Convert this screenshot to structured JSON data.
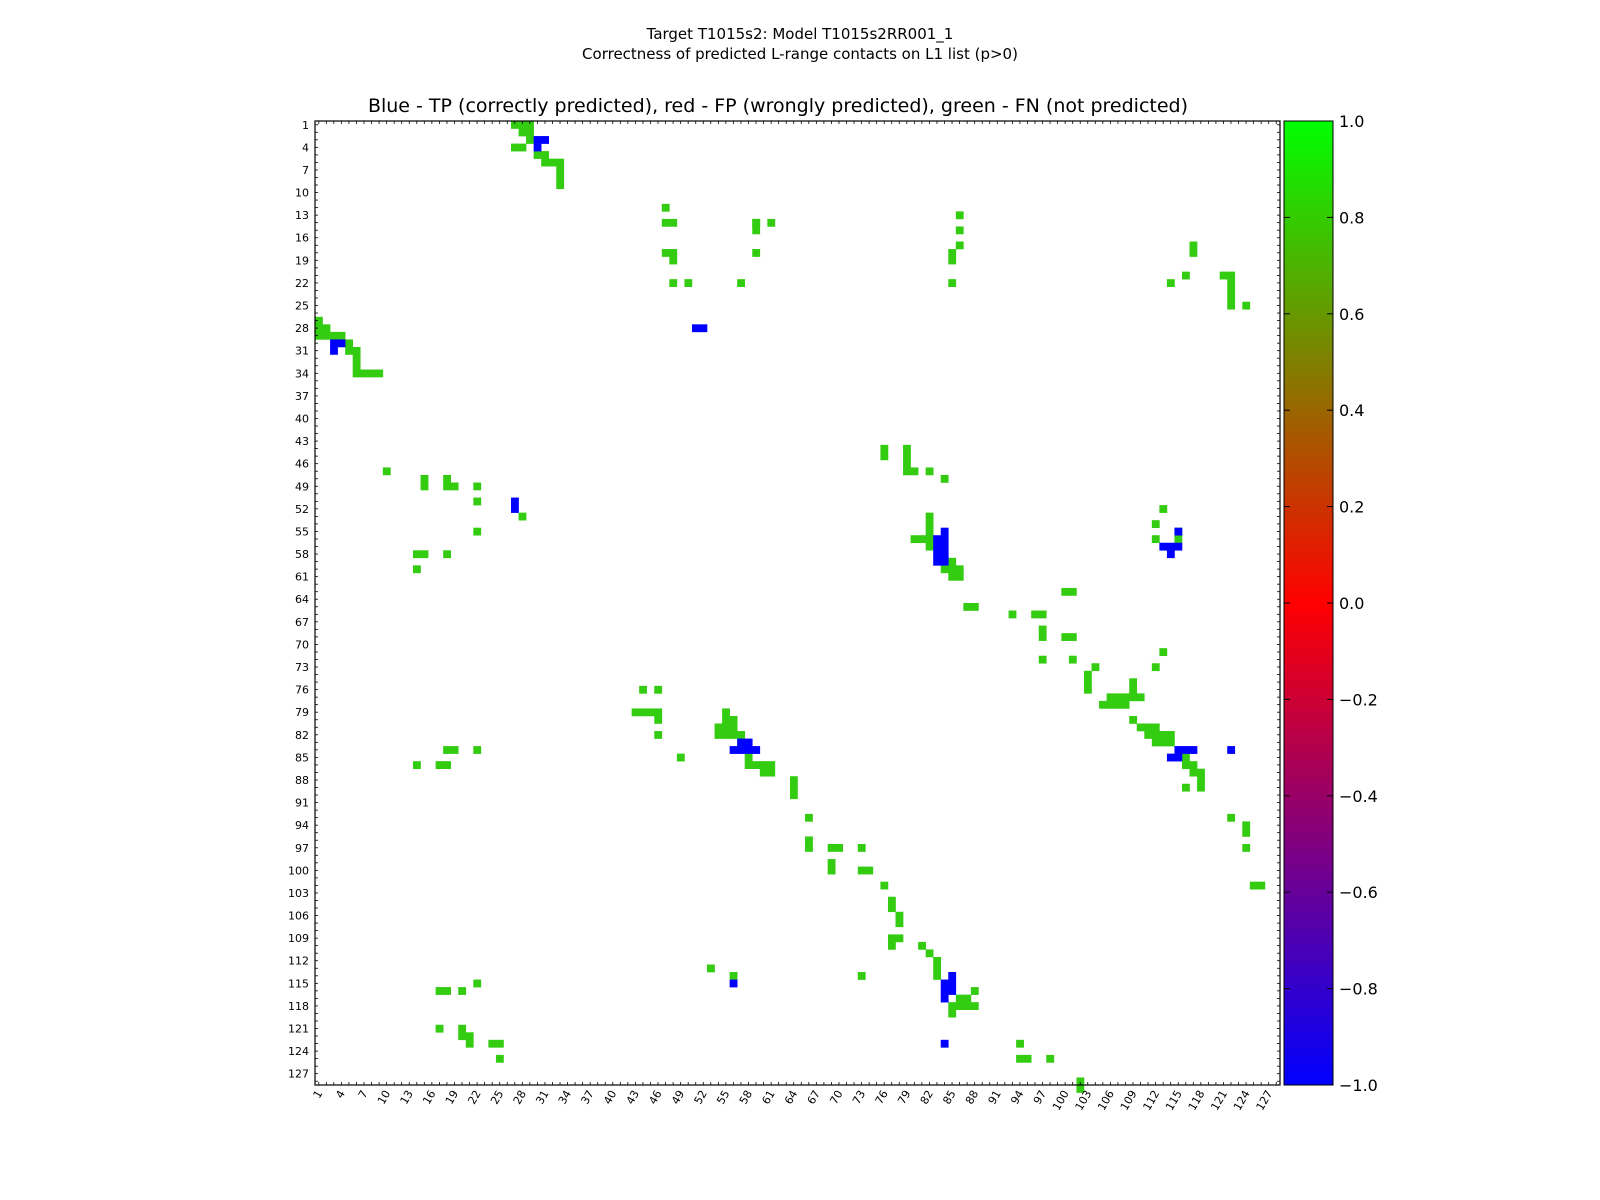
{
  "suptitle_line1": "Target T1015s2: Model T1015s2RR001_1",
  "suptitle_line2": "Correctness of predicted L-range contacts on L1 list (p>0)",
  "chart_data": {
    "type": "heatmap",
    "title": "Blue - TP (correctly predicted), red - FP (wrongly predicted), green - FN (not predicted)",
    "xlabel": "",
    "ylabel": "",
    "xlim": [
      1,
      128
    ],
    "ylim": [
      1,
      128
    ],
    "ticks": [
      "1",
      "4",
      "7",
      "10",
      "13",
      "16",
      "19",
      "22",
      "25",
      "28",
      "31",
      "34",
      "37",
      "40",
      "43",
      "46",
      "49",
      "52",
      "55",
      "58",
      "61",
      "64",
      "67",
      "70",
      "73",
      "76",
      "79",
      "82",
      "85",
      "88",
      "91",
      "94",
      "97",
      "100",
      "103",
      "106",
      "109",
      "112",
      "115",
      "118",
      "121",
      "124",
      "127"
    ],
    "legend": {
      "TP": "Blue - TP (correctly predicted)",
      "FP": "red - FP (wrongly predicted)",
      "FN": "green - FN (not predicted)"
    },
    "colorbar": {
      "min": -1.0,
      "max": 1.0,
      "ticks": [
        "1.0",
        "0.8",
        "0.6",
        "0.4",
        "0.2",
        "0.0",
        "−0.2",
        "−0.4",
        "−0.6",
        "−0.8",
        "−1.0"
      ],
      "stops": [
        "#0000ff",
        "#ff0000",
        "#00ff00"
      ]
    },
    "colors": {
      "TP": "#0000ff",
      "FP": "#ff0000",
      "FN": "#33cc11"
    },
    "cells": {
      "FN": [
        [
          1,
          27
        ],
        [
          1,
          28
        ],
        [
          1,
          29
        ],
        [
          2,
          28
        ],
        [
          2,
          29
        ],
        [
          3,
          29
        ],
        [
          4,
          27
        ],
        [
          4,
          28
        ],
        [
          5,
          30
        ],
        [
          5,
          31
        ],
        [
          6,
          31
        ],
        [
          6,
          32
        ],
        [
          6,
          33
        ],
        [
          7,
          33
        ],
        [
          8,
          33
        ],
        [
          9,
          33
        ],
        [
          12,
          47
        ],
        [
          14,
          47
        ],
        [
          14,
          48
        ],
        [
          14,
          59
        ],
        [
          14,
          61
        ],
        [
          13,
          86
        ],
        [
          14,
          59
        ],
        [
          15,
          59
        ],
        [
          15,
          86
        ],
        [
          17,
          86
        ],
        [
          18,
          47
        ],
        [
          18,
          48
        ],
        [
          18,
          59
        ],
        [
          18,
          85
        ],
        [
          19,
          48
        ],
        [
          19,
          85
        ],
        [
          22,
          48
        ],
        [
          22,
          50
        ],
        [
          22,
          57
        ],
        [
          22,
          85
        ],
        [
          17,
          117
        ],
        [
          18,
          117
        ],
        [
          21,
          116
        ],
        [
          21,
          121
        ],
        [
          21,
          122
        ],
        [
          22,
          114
        ],
        [
          22,
          122
        ],
        [
          23,
          122
        ],
        [
          24,
          122
        ],
        [
          25,
          122
        ],
        [
          25,
          124
        ],
        [
          27,
          1
        ],
        [
          28,
          1
        ],
        [
          28,
          2
        ],
        [
          29,
          1
        ],
        [
          29,
          2
        ],
        [
          29,
          3
        ],
        [
          29,
          4
        ],
        [
          30,
          4
        ],
        [
          30,
          5
        ],
        [
          31,
          5
        ],
        [
          31,
          6
        ],
        [
          32,
          6
        ],
        [
          33,
          6
        ],
        [
          34,
          6
        ],
        [
          34,
          7
        ],
        [
          34,
          8
        ],
        [
          34,
          9
        ],
        [
          44,
          76
        ],
        [
          45,
          76
        ],
        [
          44,
          79
        ],
        [
          45,
          79
        ],
        [
          46,
          79
        ],
        [
          47,
          79
        ],
        [
          47,
          80
        ],
        [
          47,
          82
        ],
        [
          48,
          84
        ],
        [
          47,
          10
        ],
        [
          48,
          15
        ],
        [
          49,
          15
        ],
        [
          48,
          18
        ],
        [
          49,
          18
        ],
        [
          49,
          19
        ],
        [
          49,
          22
        ],
        [
          51,
          22
        ],
        [
          55,
          22
        ],
        [
          58,
          14
        ],
        [
          58,
          15
        ],
        [
          58,
          18
        ],
        [
          60,
          14
        ],
        [
          53,
          28
        ],
        [
          53,
          82
        ],
        [
          54,
          82
        ],
        [
          55,
          82
        ],
        [
          56,
          80
        ],
        [
          56,
          81
        ],
        [
          56,
          82
        ],
        [
          57,
          82
        ],
        [
          57,
          83
        ],
        [
          58,
          84
        ],
        [
          59,
          85
        ],
        [
          60,
          85
        ],
        [
          61,
          85
        ],
        [
          61,
          86
        ],
        [
          59,
          84
        ],
        [
          60,
          84
        ],
        [
          60,
          86
        ],
        [
          54,
          112
        ],
        [
          56,
          112
        ],
        [
          65,
          87
        ],
        [
          65,
          88
        ],
        [
          66,
          93
        ],
        [
          66,
          96
        ],
        [
          66,
          97
        ],
        [
          68,
          97
        ],
        [
          69,
          97
        ],
        [
          69,
          100
        ],
        [
          69,
          101
        ],
        [
          72,
          97
        ],
        [
          72,
          101
        ],
        [
          73,
          112
        ],
        [
          74,
          103
        ],
        [
          76,
          44
        ],
        [
          76,
          46
        ],
        [
          77,
          106
        ],
        [
          77,
          107
        ],
        [
          77,
          110
        ],
        [
          78,
          105
        ],
        [
          78,
          106
        ],
        [
          78,
          107
        ],
        [
          78,
          108
        ],
        [
          79,
          43
        ],
        [
          79,
          44
        ],
        [
          79,
          45
        ],
        [
          79,
          46
        ],
        [
          80,
          46
        ],
        [
          79,
          55
        ],
        [
          80,
          55
        ],
        [
          80,
          56
        ],
        [
          81,
          54
        ],
        [
          81,
          55
        ],
        [
          81,
          56
        ],
        [
          82,
          54
        ],
        [
          82,
          55
        ],
        [
          82,
          56
        ],
        [
          82,
          57
        ],
        [
          83,
          57
        ],
        [
          84,
          18
        ],
        [
          84,
          19
        ],
        [
          84,
          22
        ],
        [
          85,
          49
        ],
        [
          86,
          14
        ],
        [
          86,
          17
        ],
        [
          86,
          18
        ],
        [
          85,
          58
        ],
        [
          86,
          58
        ],
        [
          86,
          59
        ],
        [
          86,
          60
        ],
        [
          86,
          61
        ],
        [
          87,
          60
        ],
        [
          87,
          61
        ],
        [
          88,
          64
        ],
        [
          89,
          64
        ],
        [
          90,
          64
        ],
        [
          82,
          46
        ],
        [
          80,
          109
        ],
        [
          81,
          110
        ],
        [
          81,
          111
        ],
        [
          81,
          112
        ],
        [
          82,
          111
        ],
        [
          82,
          112
        ],
        [
          82,
          113
        ],
        [
          82,
          114
        ],
        [
          83,
          112
        ],
        [
          83,
          113
        ],
        [
          83,
          114
        ],
        [
          85,
          116
        ],
        [
          86,
          116
        ],
        [
          86,
          117
        ],
        [
          87,
          117
        ],
        [
          87,
          118
        ],
        [
          88,
          118
        ],
        [
          89,
          118
        ],
        [
          89,
          116
        ],
        [
          93,
          66
        ],
        [
          96,
          66
        ],
        [
          97,
          66
        ],
        [
          97,
          69
        ],
        [
          97,
          70
        ],
        [
          97,
          73
        ],
        [
          99,
          69
        ],
        [
          100,
          69
        ],
        [
          100,
          73
        ],
        [
          100,
          74
        ],
        [
          102,
          76
        ],
        [
          104,
          77
        ],
        [
          105,
          77
        ],
        [
          106,
          78
        ],
        [
          107,
          78
        ],
        [
          109,
          77
        ],
        [
          109,
          78
        ],
        [
          110,
          77
        ],
        [
          110,
          81
        ],
        [
          111,
          82
        ],
        [
          112,
          83
        ],
        [
          113,
          83
        ],
        [
          114,
          83
        ],
        [
          114,
          73
        ],
        [
          113,
          53
        ],
        [
          114,
          56
        ],
        [
          115,
          22
        ],
        [
          116,
          17
        ],
        [
          116,
          18
        ],
        [
          116,
          20
        ],
        [
          116,
          88
        ],
        [
          117,
          86
        ],
        [
          117,
          87
        ],
        [
          118,
          85
        ],
        [
          118,
          86
        ],
        [
          118,
          87
        ],
        [
          118,
          88
        ],
        [
          119,
          85
        ],
        [
          121,
          17
        ],
        [
          121,
          20
        ],
        [
          122,
          20
        ],
        [
          122,
          21
        ],
        [
          123,
          21
        ],
        [
          123,
          24
        ],
        [
          123,
          25
        ],
        [
          125,
          25
        ],
        [
          123,
          94
        ],
        [
          125,
          94
        ],
        [
          125,
          95
        ],
        [
          125,
          98
        ],
        [
          128,
          102
        ],
        [
          129,
          102
        ],
        [
          93,
          122
        ],
        [
          94,
          124
        ],
        [
          95,
          124
        ],
        [
          97,
          124
        ],
        [
          102,
          125
        ],
        [
          102,
          126
        ],
        [
          71,
          113
        ],
        [
          75,
          109
        ],
        [
          76,
          109
        ],
        [
          77,
          109
        ],
        [
          77,
          108
        ],
        [
          52,
          113
        ],
        [
          55,
          115
        ],
        [
          56,
          115
        ],
        [
          63,
          100
        ],
        [
          63,
          101
        ],
        [
          73,
          104
        ],
        [
          75,
          103
        ],
        [
          76,
          103
        ]
      ],
      "TP": [
        [
          3,
          30
        ],
        [
          3,
          31
        ],
        [
          4,
          30
        ],
        [
          30,
          3
        ],
        [
          30,
          4
        ],
        [
          31,
          3
        ],
        [
          28,
          51
        ],
        [
          28,
          52
        ],
        [
          51,
          27
        ],
        [
          52,
          27
        ],
        [
          55,
          84
        ],
        [
          56,
          83
        ],
        [
          56,
          84
        ],
        [
          57,
          83
        ],
        [
          57,
          84
        ],
        [
          58,
          83
        ],
        [
          58,
          84
        ],
        [
          59,
          83
        ],
        [
          59,
          84
        ],
        [
          55,
          115
        ],
        [
          57,
          113
        ],
        [
          57,
          114
        ],
        [
          57,
          115
        ],
        [
          58,
          114
        ],
        [
          83,
          57
        ],
        [
          83,
          58
        ],
        [
          84,
          56
        ],
        [
          84,
          57
        ],
        [
          84,
          58
        ],
        [
          84,
          59
        ],
        [
          114,
          85
        ],
        [
          115,
          84
        ],
        [
          115,
          85
        ],
        [
          116,
          84
        ],
        [
          116,
          85
        ],
        [
          117,
          84
        ],
        [
          84,
          115
        ],
        [
          84,
          116
        ],
        [
          84,
          117
        ],
        [
          85,
          114
        ],
        [
          85,
          115
        ],
        [
          84,
          122
        ],
        [
          123,
          84
        ],
        [
          115,
          56
        ]
      ]
    }
  }
}
